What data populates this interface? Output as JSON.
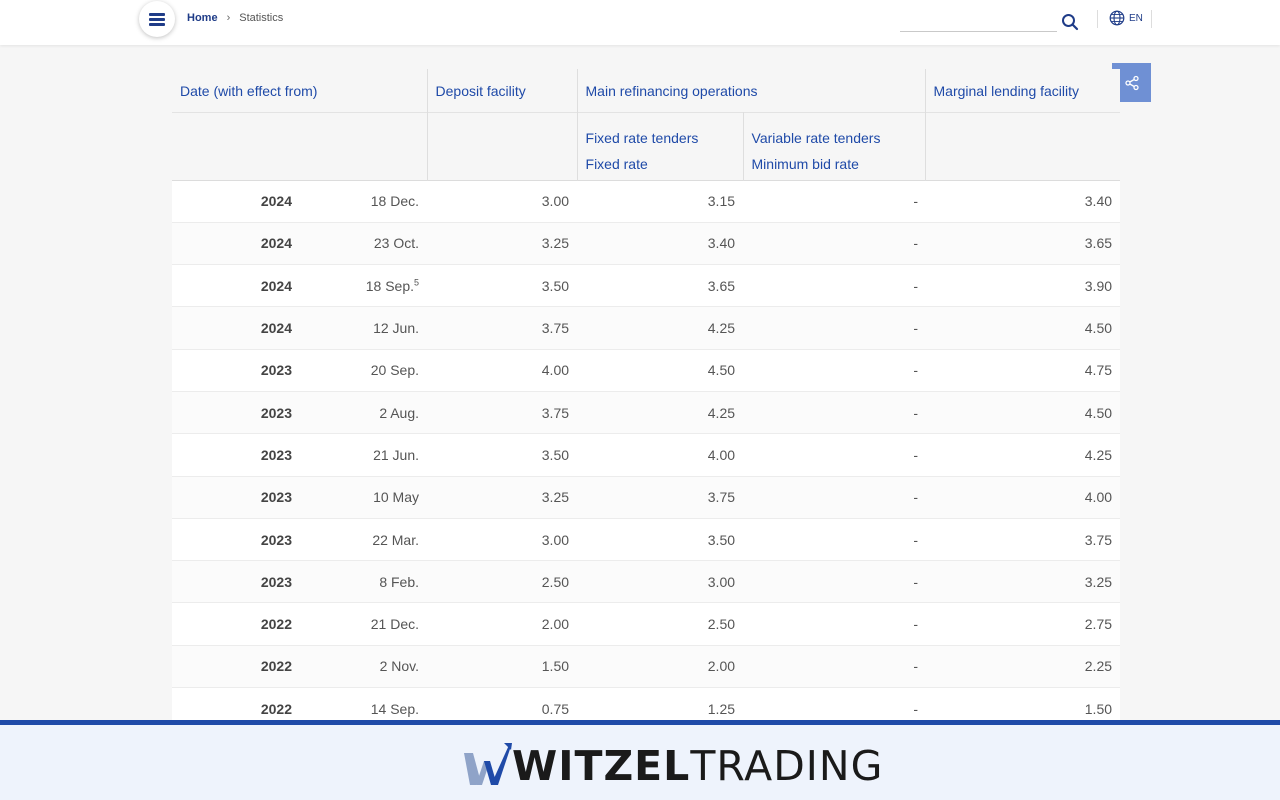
{
  "header": {
    "breadcrumb": {
      "home": "Home",
      "separator": "›",
      "current": "Statistics"
    },
    "search_placeholder": "",
    "language": "EN"
  },
  "table": {
    "headers": {
      "date": "Date (with effect from)",
      "deposit": "Deposit facility",
      "mro": "Main refinancing operations",
      "marginal": "Marginal lending facility",
      "fixed_tenders": "Fixed rate tenders",
      "fixed_rate": "Fixed rate",
      "variable_tenders": "Variable rate tenders",
      "min_bid": "Minimum bid rate"
    },
    "rows": [
      {
        "year": "2024",
        "date": "18 Dec.",
        "footnote": "",
        "deposit": "3.00",
        "fixed": "3.15",
        "variable": "-",
        "marginal": "3.40"
      },
      {
        "year": "2024",
        "date": "23 Oct.",
        "footnote": "",
        "deposit": "3.25",
        "fixed": "3.40",
        "variable": "-",
        "marginal": "3.65"
      },
      {
        "year": "2024",
        "date": "18 Sep.",
        "footnote": "5",
        "deposit": "3.50",
        "fixed": "3.65",
        "variable": "-",
        "marginal": "3.90"
      },
      {
        "year": "2024",
        "date": "12 Jun.",
        "footnote": "",
        "deposit": "3.75",
        "fixed": "4.25",
        "variable": "-",
        "marginal": "4.50"
      },
      {
        "year": "2023",
        "date": "20 Sep.",
        "footnote": "",
        "deposit": "4.00",
        "fixed": "4.50",
        "variable": "-",
        "marginal": "4.75"
      },
      {
        "year": "2023",
        "date": "2 Aug.",
        "footnote": "",
        "deposit": "3.75",
        "fixed": "4.25",
        "variable": "-",
        "marginal": "4.50"
      },
      {
        "year": "2023",
        "date": "21 Jun.",
        "footnote": "",
        "deposit": "3.50",
        "fixed": "4.00",
        "variable": "-",
        "marginal": "4.25"
      },
      {
        "year": "2023",
        "date": "10 May",
        "footnote": "",
        "deposit": "3.25",
        "fixed": "3.75",
        "variable": "-",
        "marginal": "4.00"
      },
      {
        "year": "2023",
        "date": "22 Mar.",
        "footnote": "",
        "deposit": "3.00",
        "fixed": "3.50",
        "variable": "-",
        "marginal": "3.75"
      },
      {
        "year": "2023",
        "date": "8 Feb.",
        "footnote": "",
        "deposit": "2.50",
        "fixed": "3.00",
        "variable": "-",
        "marginal": "3.25"
      },
      {
        "year": "2022",
        "date": "21 Dec.",
        "footnote": "",
        "deposit": "2.00",
        "fixed": "2.50",
        "variable": "-",
        "marginal": "2.75"
      },
      {
        "year": "2022",
        "date": "2 Nov.",
        "footnote": "",
        "deposit": "1.50",
        "fixed": "2.00",
        "variable": "-",
        "marginal": "2.25"
      },
      {
        "year": "2022",
        "date": "14 Sep.",
        "footnote": "",
        "deposit": "0.75",
        "fixed": "1.25",
        "variable": "-",
        "marginal": "1.50"
      }
    ]
  },
  "banner": {
    "logo_bold": "WITZEL",
    "logo_light": "TRADING",
    "logo_w_accent": "#1f4aa8"
  },
  "colors": {
    "link": "#1f4aa8",
    "share_bg": "#6f90d4",
    "banner_bg": "#eef3fc",
    "banner_border": "#1f4aa8"
  },
  "icons": {
    "menu": "hamburger-icon",
    "search": "search-icon",
    "language": "globe-icon",
    "share": "share-icon"
  }
}
